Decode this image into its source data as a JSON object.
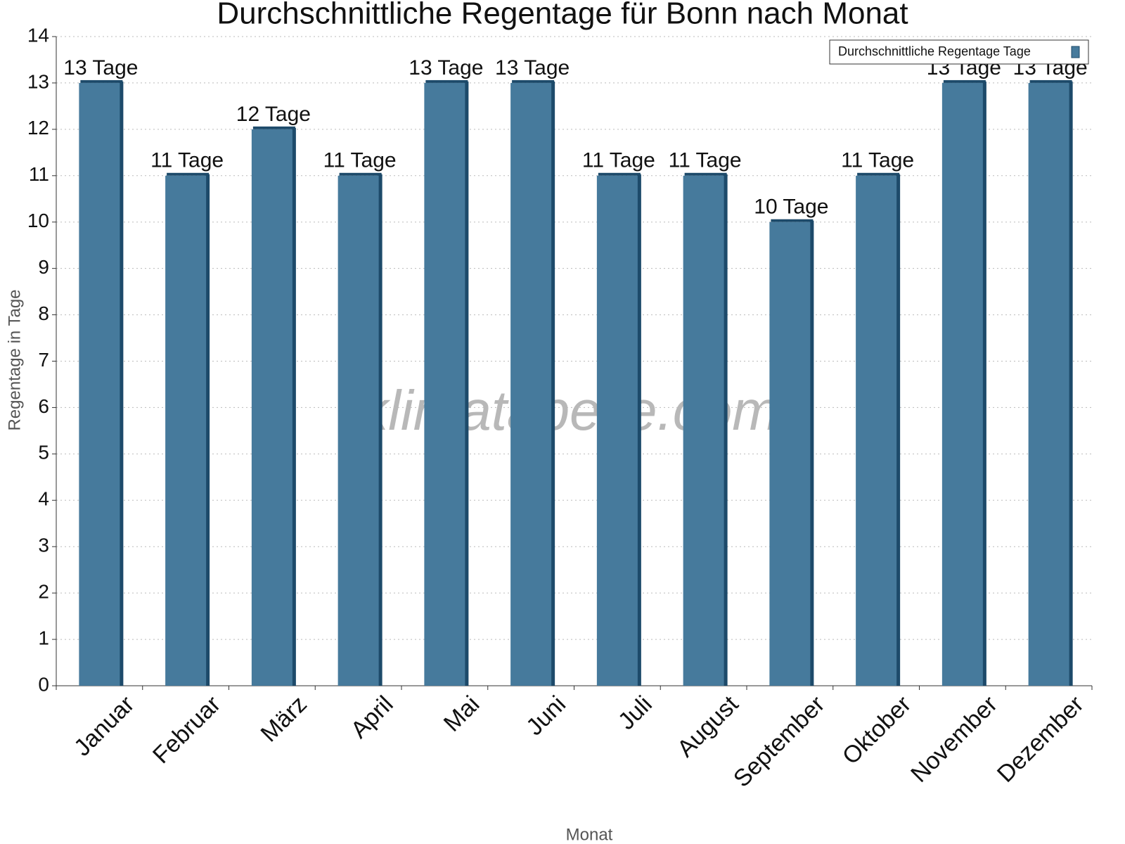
{
  "chart_data": {
    "type": "bar",
    "title": "Durchschnittliche Regentage für Bonn nach Monat",
    "x_label": "Monat",
    "y_label": "Regentage in Tage",
    "watermark": "klimatabelle.com",
    "categories": [
      "Januar",
      "Februar",
      "März",
      "April",
      "Mai",
      "Juni",
      "Juli",
      "August",
      "September",
      "Oktober",
      "November",
      "Dezember"
    ],
    "series": [
      {
        "name": "Durchschnittliche Regentage Tage",
        "color": "#467a9c",
        "values": [
          13,
          11,
          12,
          11,
          13,
          13,
          11,
          11,
          10,
          11,
          13,
          13
        ],
        "value_labels": [
          "13 Tage",
          "11 Tage",
          "12 Tage",
          "11 Tage",
          "13 Tage",
          "13 Tage",
          "11 Tage",
          "11 Tage",
          "10 Tage",
          "11 Tage",
          "13 Tage",
          "13 Tage"
        ]
      }
    ],
    "ylim": [
      0,
      14
    ],
    "yticks": [
      0,
      1,
      2,
      3,
      4,
      5,
      6,
      7,
      8,
      9,
      10,
      11,
      12,
      13,
      14
    ],
    "grid": true,
    "legend": "top-right"
  }
}
